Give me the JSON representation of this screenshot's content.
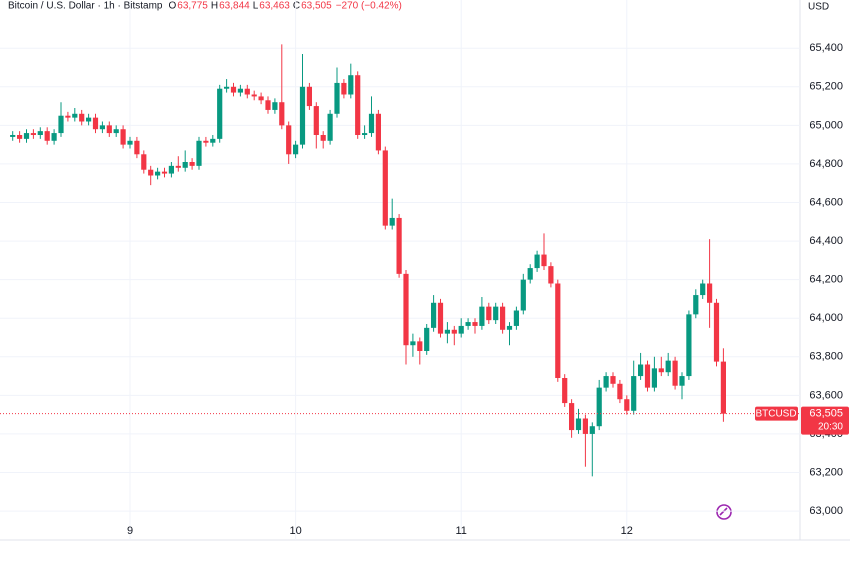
{
  "chart_data": {
    "type": "candlestick",
    "header": {
      "title": "Bitcoin / U.S. Dollar · 1h · Bitstamp",
      "o_label": "O",
      "o": "63,775",
      "h_label": "H",
      "h": "63,844",
      "l_label": "L",
      "l": "63,463",
      "c_label": "C",
      "c": "63,505",
      "change": "−270 (−0.42%)"
    },
    "currency": "USD",
    "symbol": "BTCUSD",
    "last_price": {
      "value": 63505,
      "label": "63,505"
    },
    "countdown": "20:30",
    "up_color": "#089981",
    "down_color": "#f23645",
    "grid": true,
    "ylim": [
      62850,
      65650
    ],
    "yticks": [
      {
        "value": 63000,
        "label": "63,000"
      },
      {
        "value": 63200,
        "label": "63,200"
      },
      {
        "value": 63400,
        "label": "63,400"
      },
      {
        "value": 63600,
        "label": "63,600"
      },
      {
        "value": 63800,
        "label": "63,800"
      },
      {
        "value": 64000,
        "label": "64,000"
      },
      {
        "value": 64200,
        "label": "64,200"
      },
      {
        "value": 64400,
        "label": "64,400"
      },
      {
        "value": 64600,
        "label": "64,600"
      },
      {
        "value": 64800,
        "label": "64,800"
      },
      {
        "value": 65000,
        "label": "65,000"
      },
      {
        "value": 65200,
        "label": "65,200"
      },
      {
        "value": 65400,
        "label": "65,400"
      }
    ],
    "categories": [
      null,
      null,
      null,
      null,
      null,
      null,
      null,
      null,
      null,
      null,
      null,
      null,
      null,
      null,
      null,
      null,
      null,
      "9",
      null,
      null,
      null,
      null,
      null,
      null,
      null,
      null,
      null,
      null,
      null,
      null,
      null,
      null,
      null,
      null,
      null,
      null,
      null,
      null,
      null,
      null,
      null,
      "10",
      null,
      null,
      null,
      null,
      null,
      null,
      null,
      null,
      null,
      null,
      null,
      null,
      null,
      null,
      null,
      null,
      null,
      null,
      null,
      null,
      null,
      null,
      null,
      "11",
      null,
      null,
      null,
      null,
      null,
      null,
      null,
      null,
      null,
      null,
      null,
      null,
      null,
      null,
      null,
      null,
      null,
      null,
      null,
      null,
      null,
      null,
      null,
      "12",
      null,
      null,
      null,
      null,
      null,
      null,
      null,
      null,
      null,
      null,
      null,
      null,
      null,
      null
    ],
    "open": [
      64940,
      64950,
      64930,
      64960,
      64950,
      64970,
      64920,
      64960,
      65050,
      65040,
      65060,
      65020,
      65040,
      64980,
      65000,
      64960,
      64980,
      64900,
      64920,
      64850,
      64770,
      64740,
      64760,
      64750,
      64790,
      64780,
      64810,
      64790,
      64920,
      64910,
      64930,
      65190,
      65200,
      65170,
      65190,
      65160,
      65150,
      65130,
      65080,
      65120,
      65000,
      64850,
      64900,
      65200,
      65100,
      64950,
      64920,
      65060,
      65220,
      65160,
      65260,
      64950,
      64960,
      65060,
      64870,
      64480,
      64520,
      64230,
      63860,
      63880,
      63830,
      63950,
      64080,
      63920,
      63940,
      63920,
      63960,
      63980,
      63960,
      64060,
      63990,
      64060,
      63940,
      63960,
      64040,
      64200,
      64260,
      64330,
      64270,
      64180,
      63690,
      63560,
      63420,
      63480,
      63400,
      63440,
      63640,
      63700,
      63660,
      63580,
      63520,
      63700,
      63760,
      63640,
      63740,
      63720,
      63780,
      63650,
      63700,
      64020,
      64120,
      64180,
      64080,
      63775
    ],
    "high": [
      64970,
      64970,
      64980,
      64980,
      64990,
      64990,
      64980,
      65120,
      65070,
      65090,
      65080,
      65060,
      65060,
      65020,
      65020,
      65000,
      65000,
      64940,
      64940,
      64870,
      64790,
      64780,
      64780,
      64810,
      64840,
      64870,
      64830,
      64940,
      64940,
      64950,
      65210,
      65240,
      65220,
      65210,
      65210,
      65180,
      65170,
      65150,
      65140,
      65420,
      65020,
      64920,
      65370,
      65220,
      65120,
      64970,
      65080,
      65300,
      65240,
      65320,
      65280,
      65000,
      65150,
      65080,
      64890,
      64620,
      64540,
      64250,
      63920,
      63900,
      63970,
      64120,
      64100,
      63980,
      63960,
      64000,
      64000,
      64000,
      64110,
      64080,
      64080,
      64080,
      63980,
      64060,
      64230,
      64280,
      64350,
      64440,
      64290,
      64200,
      63710,
      63580,
      63530,
      63500,
      63460,
      63680,
      63720,
      63720,
      63680,
      63600,
      63780,
      63820,
      63780,
      63800,
      63800,
      63820,
      63800,
      63720,
      64040,
      64150,
      64200,
      64410,
      64100,
      63844
    ],
    "low": [
      64920,
      64910,
      64910,
      64930,
      64930,
      64900,
      64900,
      64940,
      65020,
      65020,
      65000,
      65000,
      64960,
      64960,
      64940,
      64940,
      64880,
      64880,
      64830,
      64750,
      64690,
      64720,
      64730,
      64730,
      64760,
      64760,
      64770,
      64770,
      64890,
      64890,
      64910,
      65170,
      65150,
      65150,
      65140,
      65130,
      65110,
      65060,
      65060,
      64980,
      64800,
      64830,
      64880,
      65080,
      64880,
      64880,
      64900,
      65040,
      65140,
      65140,
      64930,
      64930,
      64940,
      64850,
      64460,
      64460,
      64210,
      63760,
      63800,
      63760,
      63810,
      63930,
      63900,
      63870,
      63860,
      63900,
      63940,
      63920,
      63940,
      63970,
      63970,
      63920,
      63860,
      63940,
      64020,
      64180,
      64240,
      64250,
      64160,
      63670,
      63540,
      63380,
      63400,
      63230,
      63180,
      63420,
      63620,
      63640,
      63560,
      63500,
      63500,
      63680,
      63620,
      63620,
      63700,
      63700,
      63630,
      63580,
      63680,
      64000,
      64100,
      63950,
      63750,
      63463
    ],
    "close": [
      64950,
      64930,
      64960,
      64950,
      64970,
      64920,
      64960,
      65050,
      65040,
      65060,
      65020,
      65040,
      64980,
      65000,
      64960,
      64980,
      64900,
      64920,
      64850,
      64770,
      64740,
      64760,
      64750,
      64790,
      64780,
      64810,
      64790,
      64920,
      64910,
      64930,
      65190,
      65200,
      65170,
      65190,
      65160,
      65150,
      65130,
      65080,
      65120,
      65000,
      64850,
      64900,
      65200,
      65100,
      64950,
      64920,
      65060,
      65220,
      65160,
      65260,
      64950,
      64960,
      65060,
      64870,
      64480,
      64520,
      64230,
      63860,
      63880,
      63830,
      63950,
      64080,
      63920,
      63940,
      63920,
      63960,
      63980,
      63960,
      64060,
      63990,
      64060,
      63940,
      63960,
      64040,
      64200,
      64260,
      64330,
      64270,
      64180,
      63690,
      63560,
      63420,
      63480,
      63400,
      63440,
      63640,
      63700,
      63660,
      63580,
      63520,
      63700,
      63760,
      63640,
      63740,
      63720,
      63780,
      63650,
      63700,
      64020,
      64120,
      64180,
      64080,
      63775,
      63505
    ]
  }
}
